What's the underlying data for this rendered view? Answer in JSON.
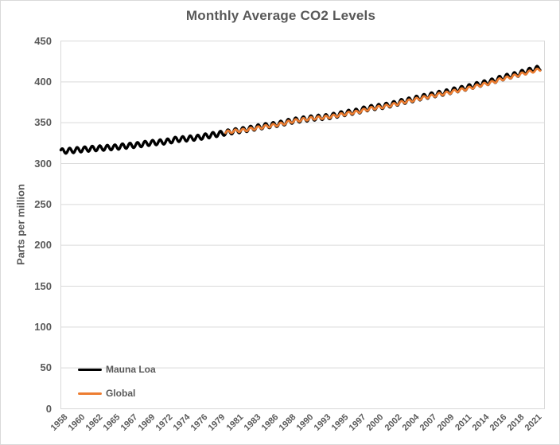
{
  "chart_data": {
    "type": "line",
    "title": "Monthly Average CO2 Levels",
    "xlabel": "",
    "ylabel": "Parts per million",
    "ylim": [
      0,
      450
    ],
    "ytick_values": [
      0,
      50,
      100,
      150,
      200,
      250,
      300,
      350,
      400,
      450
    ],
    "xtick_labels": [
      "1958",
      "1960",
      "1962",
      "1965",
      "1967",
      "1969",
      "1972",
      "1974",
      "1976",
      "1979",
      "1981",
      "1983",
      "1986",
      "1988",
      "1990",
      "1993",
      "1995",
      "1997",
      "2000",
      "2002",
      "2004",
      "2007",
      "2009",
      "2011",
      "2014",
      "2016",
      "2018",
      "2021"
    ],
    "xtick_interval_months": 28,
    "x_range_years": [
      1958.167,
      2021.75
    ],
    "grid": "horizontal-only",
    "legend_position": "inside-bottom-left",
    "colors": {
      "title_text": "#595959",
      "axis_text": "#595959",
      "gridline": "#D9D9D9",
      "plot_border": "#D9D9D9",
      "chart_border": "#D9D9D9",
      "background": "#FFFFFF"
    },
    "series": [
      {
        "name": "Mauna Loa",
        "color": "#000000",
        "line_width": 3.4,
        "start_year": 1958,
        "t_start": 1958.167,
        "t_end": 2021.75,
        "seasonal_amplitude_ppm": 3.1,
        "seasonal_peak_month": 5,
        "annual_means": [
          315.34,
          315.98,
          316.91,
          317.64,
          318.45,
          318.99,
          319.62,
          320.04,
          321.37,
          322.18,
          323.05,
          324.62,
          325.68,
          326.32,
          327.46,
          329.68,
          330.19,
          331.12,
          332.03,
          333.84,
          335.41,
          336.84,
          338.76,
          340.12,
          341.48,
          343.15,
          344.87,
          346.35,
          347.61,
          349.31,
          351.69,
          353.2,
          354.45,
          355.7,
          356.54,
          357.21,
          358.96,
          360.97,
          362.74,
          363.88,
          366.84,
          368.54,
          369.71,
          371.32,
          373.45,
          375.98,
          377.7,
          379.98,
          382.09,
          384.02,
          385.83,
          387.64,
          390.1,
          391.85,
          394.06,
          396.74,
          398.81,
          401.01,
          404.41,
          406.76,
          408.72,
          411.66,
          414.24,
          416.45
        ]
      },
      {
        "name": "Global",
        "color": "#ED7D31",
        "line_width": 2.7,
        "start_year": 1980,
        "t_start": 1980.0,
        "t_end": 2021.75,
        "seasonal_amplitude_ppm": 1.8,
        "seasonal_peak_month": 5,
        "annual_means": [
          338.91,
          340.11,
          340.86,
          342.53,
          344.07,
          345.54,
          346.97,
          348.68,
          351.16,
          352.79,
          354.06,
          355.39,
          356.09,
          356.83,
          358.33,
          360.18,
          361.93,
          363.05,
          365.7,
          367.8,
          368.97,
          370.57,
          372.59,
          375.14,
          376.96,
          378.97,
          381.14,
          382.9,
          385.02,
          386.5,
          388.76,
          390.63,
          392.65,
          395.4,
          397.34,
          399.65,
          403.07,
          405.22,
          407.61,
          410.07,
          412.44,
          414.7
        ]
      }
    ]
  }
}
